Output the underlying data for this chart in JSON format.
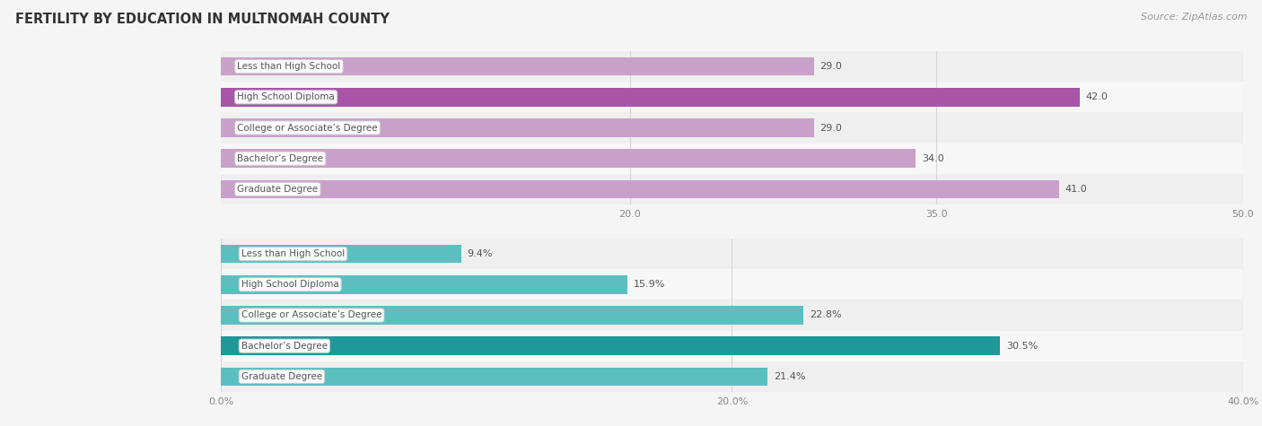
{
  "title": "FERTILITY BY EDUCATION IN MULTNOMAH COUNTY",
  "source": "Source: ZipAtlas.com",
  "top_section": {
    "categories": [
      "Less than High School",
      "High School Diploma",
      "College or Associate’s Degree",
      "Bachelor’s Degree",
      "Graduate Degree"
    ],
    "values": [
      29.0,
      42.0,
      29.0,
      34.0,
      41.0
    ],
    "labels": [
      "29.0",
      "42.0",
      "29.0",
      "34.0",
      "41.0"
    ],
    "bar_color_light": "#c9a0c9",
    "bar_color_dark": "#a855a8",
    "xlim": [
      0,
      50
    ],
    "xticks": [
      20.0,
      35.0,
      50.0
    ],
    "xtick_labels": [
      "20.0",
      "35.0",
      "50.0"
    ]
  },
  "bottom_section": {
    "categories": [
      "Less than High School",
      "High School Diploma",
      "College or Associate’s Degree",
      "Bachelor’s Degree",
      "Graduate Degree"
    ],
    "values": [
      9.4,
      15.9,
      22.8,
      30.5,
      21.4
    ],
    "labels": [
      "9.4%",
      "15.9%",
      "22.8%",
      "30.5%",
      "21.4%"
    ],
    "bar_color_light": "#5bbfbf",
    "bar_color_dark": "#1e9898",
    "xlim": [
      0,
      40
    ],
    "xticks": [
      0.0,
      20.0,
      40.0
    ],
    "xtick_labels": [
      "0.0%",
      "20.0%",
      "40.0%"
    ]
  },
  "row_bg_even": "#efefef",
  "row_bg_odd": "#f7f7f7",
  "label_text_color": "#555555",
  "value_text_color": "#555555",
  "title_color": "#333333",
  "source_color": "#999999",
  "bar_height": 0.6,
  "fig_bg": "#f5f5f5",
  "grid_color": "#d5d5d5",
  "label_box_fc": "#ffffff",
  "label_box_ec": "#cccccc"
}
